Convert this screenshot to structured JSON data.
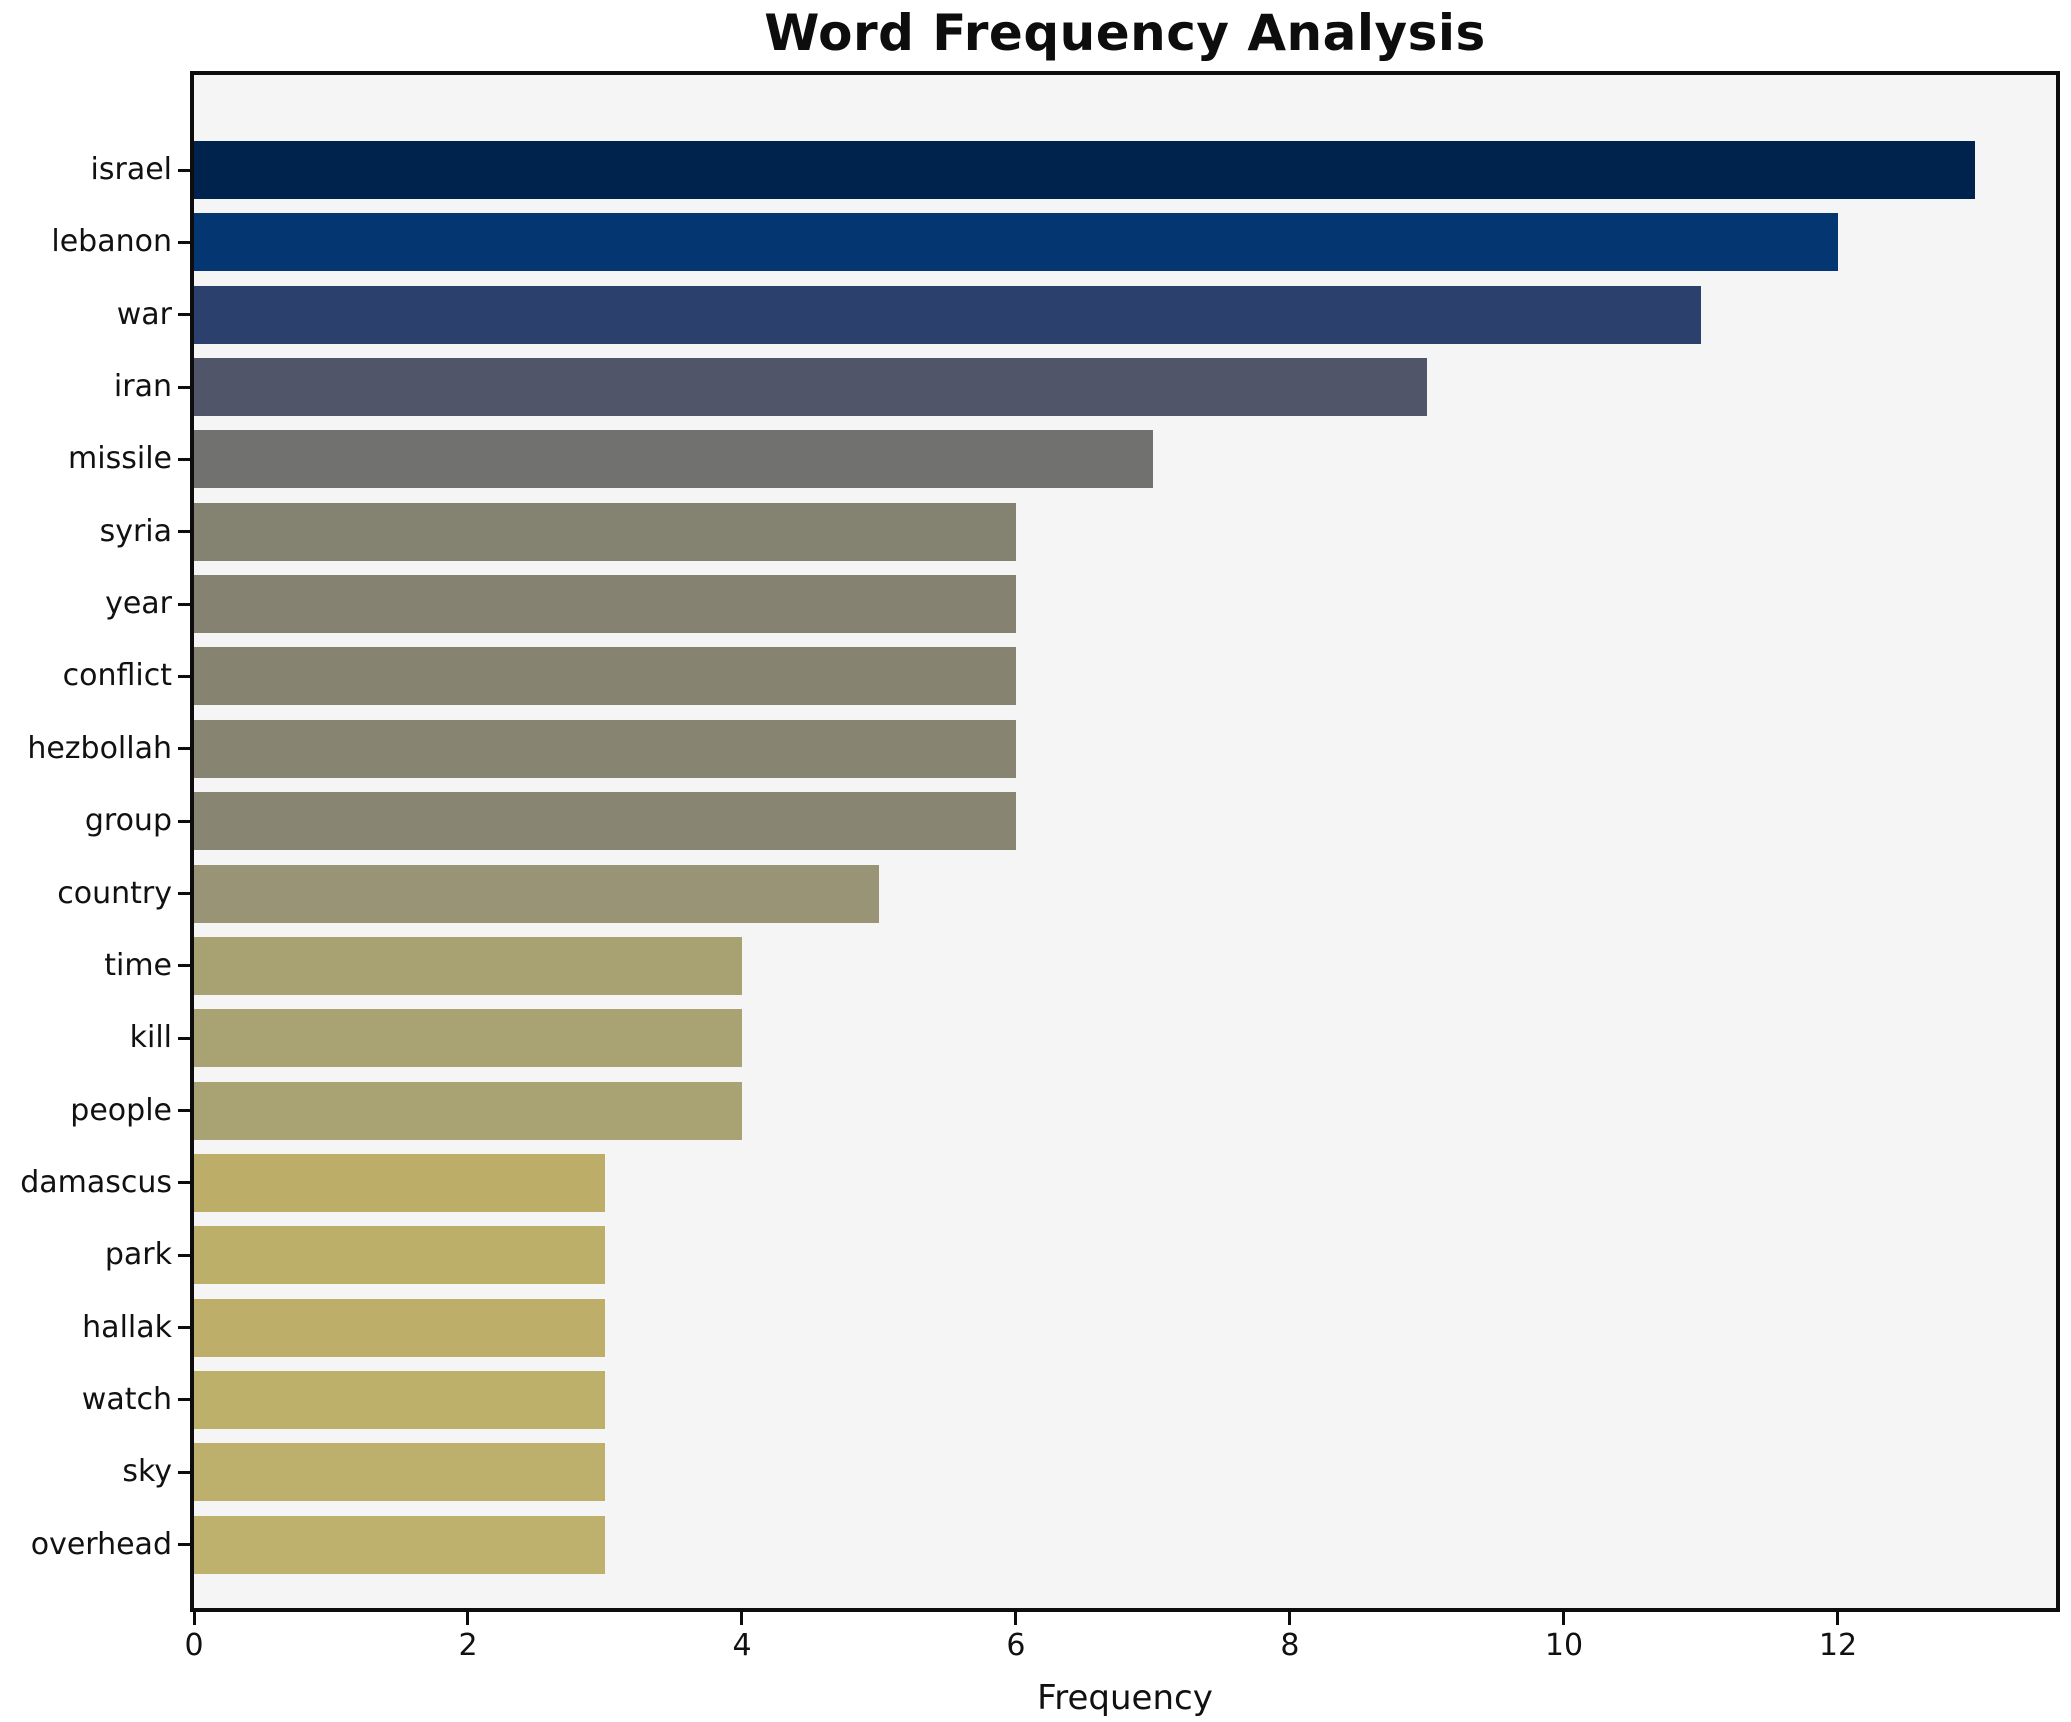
{
  "chart_data": {
    "type": "bar",
    "orientation": "horizontal",
    "title": "Word Frequency Analysis",
    "xlabel": "Frequency",
    "ylabel": "",
    "categories": [
      "israel",
      "lebanon",
      "war",
      "iran",
      "missile",
      "syria",
      "year",
      "conflict",
      "hezbollah",
      "group",
      "country",
      "time",
      "kill",
      "people",
      "damascus",
      "park",
      "hallak",
      "watch",
      "sky",
      "overhead"
    ],
    "values": [
      13,
      12,
      11,
      9,
      7,
      6,
      6,
      6,
      6,
      6,
      5,
      4,
      4,
      4,
      3,
      3,
      3,
      3,
      3,
      3
    ],
    "bar_colors": [
      "#00234e",
      "#043671",
      "#2b406d",
      "#50556a",
      "#717170",
      "#848270",
      "#858271",
      "#868371",
      "#878471",
      "#888572",
      "#9a9477",
      "#a8a172",
      "#a9a273",
      "#a9a374",
      "#bcae68",
      "#bcaf69",
      "#bdaf6a",
      "#bdb06b",
      "#bdb06c",
      "#beb16d"
    ],
    "x_ticks": [
      0,
      2,
      4,
      6,
      8,
      10,
      12
    ],
    "xlim": [
      0,
      13.65
    ],
    "grid": false,
    "legend": "none",
    "colormap": "cividis",
    "plot_background": "#f5f5f6",
    "figure_background": "#ffffff",
    "spine_color": "#0d0d0d"
  }
}
